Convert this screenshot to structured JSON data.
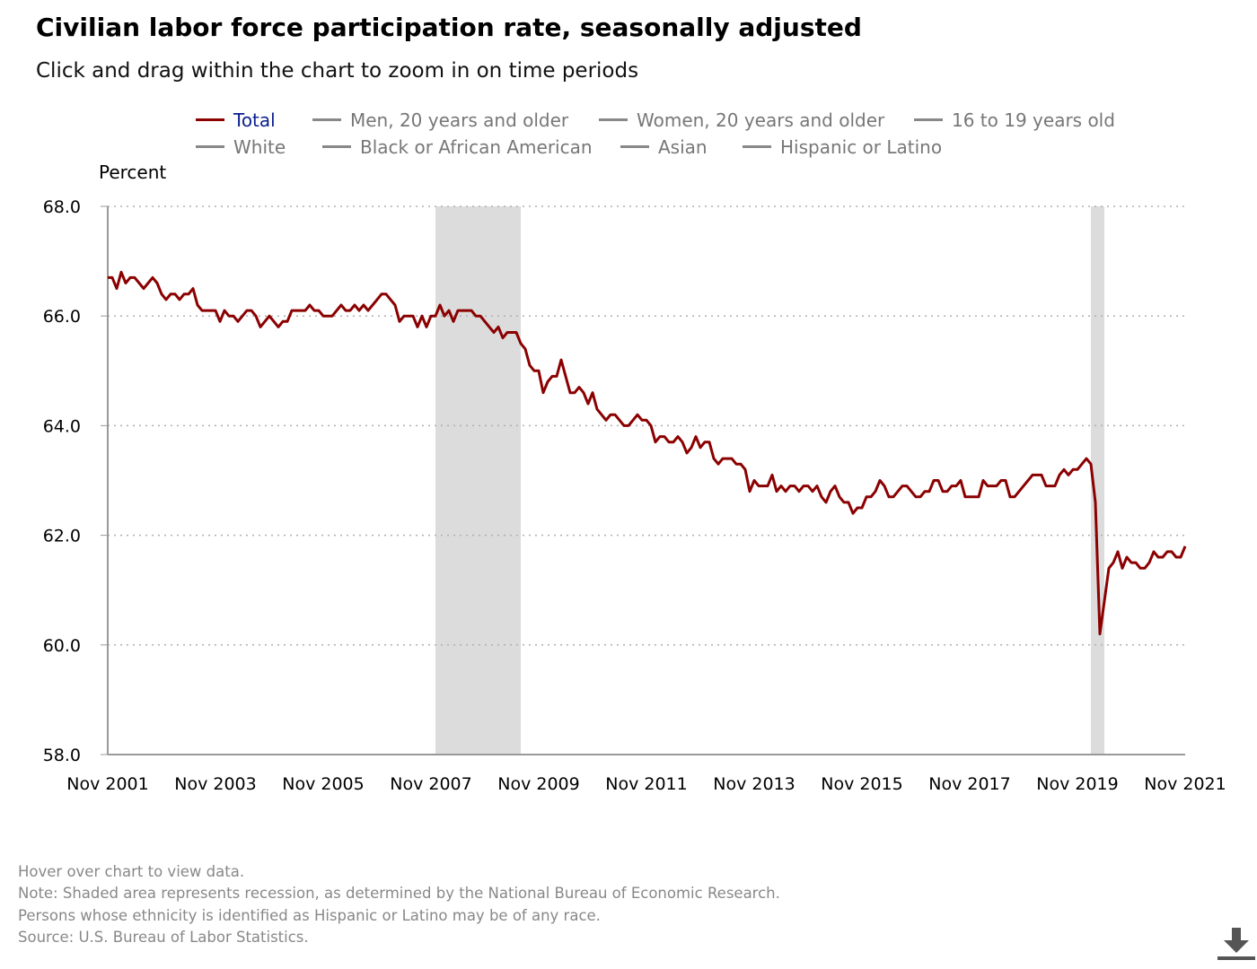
{
  "title": "Civilian labor force participation rate, seasonally adjusted",
  "subtitle": "Click and drag within the chart to zoom in on time periods",
  "legend": [
    {
      "label": "Total",
      "active": true
    },
    {
      "label": "Men, 20 years and older",
      "active": false
    },
    {
      "label": "Women, 20 years and older",
      "active": false
    },
    {
      "label": "16 to 19 years old",
      "active": false
    },
    {
      "label": "White",
      "active": false
    },
    {
      "label": "Black or African American",
      "active": false
    },
    {
      "label": "Asian",
      "active": false
    },
    {
      "label": "Hispanic or Latino",
      "active": false
    }
  ],
  "footer": {
    "hover_note": "Hover over chart to view data.",
    "recession_note": "Note: Shaded area represents recession, as determined by the National Bureau of Economic Research.",
    "ethnicity_note": "Persons whose ethnicity is identified as Hispanic or Latino may be of any race.",
    "source": "Source: U.S. Bureau of Labor Statistics."
  },
  "download_icon": "download-arrow-icon",
  "colors": {
    "series": "#8b0000",
    "recession": "#dcdcdc",
    "grid": "#b0b0b0"
  },
  "chart_data": {
    "type": "line",
    "ylabel": "Percent",
    "ylim": [
      58.0,
      68.0
    ],
    "yticks": [
      58.0,
      60.0,
      62.0,
      64.0,
      66.0,
      68.0
    ],
    "x_range": [
      "Nov 2001",
      "Nov 2021"
    ],
    "xtick_labels": [
      "Nov 2001",
      "Nov 2003",
      "Nov 2005",
      "Nov 2007",
      "Nov 2009",
      "Nov 2011",
      "Nov 2013",
      "Nov 2015",
      "Nov 2017",
      "Nov 2019",
      "Nov 2021"
    ],
    "grid": "horizontal dotted",
    "recessions": [
      {
        "start": "Dec 2007",
        "end": "Jun 2009"
      },
      {
        "start": "Feb 2020",
        "end": "Apr 2020"
      }
    ],
    "series": [
      {
        "name": "Total",
        "start": "Nov 2001",
        "frequency": "monthly",
        "values": [
          66.7,
          66.7,
          66.5,
          66.8,
          66.6,
          66.7,
          66.7,
          66.6,
          66.5,
          66.6,
          66.7,
          66.6,
          66.4,
          66.3,
          66.4,
          66.4,
          66.3,
          66.4,
          66.4,
          66.5,
          66.2,
          66.1,
          66.1,
          66.1,
          66.1,
          65.9,
          66.1,
          66.0,
          66.0,
          65.9,
          66.0,
          66.1,
          66.1,
          66.0,
          65.8,
          65.9,
          66.0,
          65.9,
          65.8,
          65.9,
          65.9,
          66.1,
          66.1,
          66.1,
          66.1,
          66.2,
          66.1,
          66.1,
          66.0,
          66.0,
          66.0,
          66.1,
          66.2,
          66.1,
          66.1,
          66.2,
          66.1,
          66.2,
          66.1,
          66.2,
          66.3,
          66.4,
          66.4,
          66.3,
          66.2,
          65.9,
          66.0,
          66.0,
          66.0,
          65.8,
          66.0,
          65.8,
          66.0,
          66.0,
          66.2,
          66.0,
          66.1,
          65.9,
          66.1,
          66.1,
          66.1,
          66.1,
          66.0,
          66.0,
          65.9,
          65.8,
          65.7,
          65.8,
          65.6,
          65.7,
          65.7,
          65.7,
          65.5,
          65.4,
          65.1,
          65.0,
          65.0,
          64.6,
          64.8,
          64.9,
          64.9,
          65.2,
          64.9,
          64.6,
          64.6,
          64.7,
          64.6,
          64.4,
          64.6,
          64.3,
          64.2,
          64.1,
          64.2,
          64.2,
          64.1,
          64.0,
          64.0,
          64.1,
          64.2,
          64.1,
          64.1,
          64.0,
          63.7,
          63.8,
          63.8,
          63.7,
          63.7,
          63.8,
          63.7,
          63.5,
          63.6,
          63.8,
          63.6,
          63.7,
          63.7,
          63.4,
          63.3,
          63.4,
          63.4,
          63.4,
          63.3,
          63.3,
          63.2,
          62.8,
          63.0,
          62.9,
          62.9,
          62.9,
          63.1,
          62.8,
          62.9,
          62.8,
          62.9,
          62.9,
          62.8,
          62.9,
          62.9,
          62.8,
          62.9,
          62.7,
          62.6,
          62.8,
          62.9,
          62.7,
          62.6,
          62.6,
          62.4,
          62.5,
          62.5,
          62.7,
          62.7,
          62.8,
          63.0,
          62.9,
          62.7,
          62.7,
          62.8,
          62.9,
          62.9,
          62.8,
          62.7,
          62.7,
          62.8,
          62.8,
          63.0,
          63.0,
          62.8,
          62.8,
          62.9,
          62.9,
          63.0,
          62.7,
          62.7,
          62.7,
          62.7,
          63.0,
          62.9,
          62.9,
          62.9,
          63.0,
          63.0,
          62.7,
          62.7,
          62.8,
          62.9,
          63.0,
          63.1,
          63.1,
          63.1,
          62.9,
          62.9,
          62.9,
          63.1,
          63.2,
          63.1,
          63.2,
          63.2,
          63.3,
          63.4,
          63.3,
          62.6,
          60.2,
          60.8,
          61.4,
          61.5,
          61.7,
          61.4,
          61.6,
          61.5,
          61.5,
          61.4,
          61.4,
          61.5,
          61.7,
          61.6,
          61.6,
          61.7,
          61.7,
          61.6,
          61.6,
          61.8
        ]
      }
    ]
  }
}
